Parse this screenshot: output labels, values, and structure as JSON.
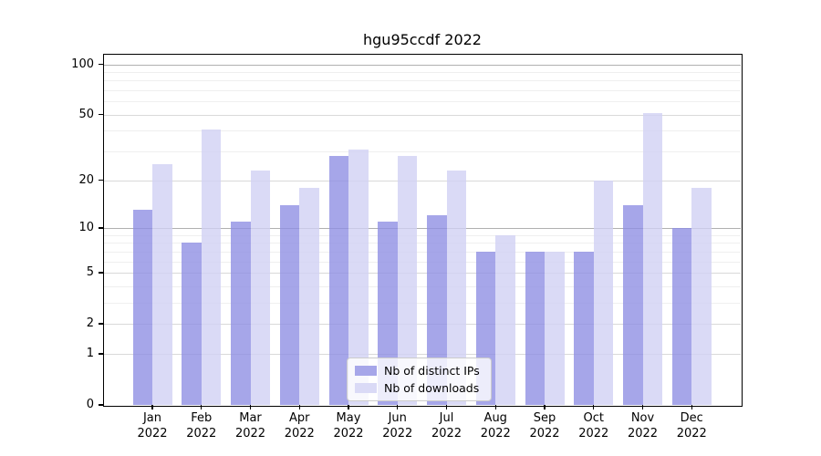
{
  "title": "hgu95ccdf 2022",
  "colors": {
    "distinct_ips": "#a6a6e9",
    "downloads": "#dadaf6",
    "distinct_ips_fill": "rgba(141,141,227,0.78)",
    "downloads_fill": "rgba(209,209,244,0.80)",
    "grid_major": "#b0b0b0",
    "grid_mid": "#d9d9d9",
    "grid_minor": "#efefef",
    "axis_frame": "#000000",
    "legend_border": "#cccccc"
  },
  "chart_data": {
    "type": "bar",
    "title": "hgu95ccdf 2022",
    "categories": [
      "Jan 2022",
      "Feb 2022",
      "Mar 2022",
      "Apr 2022",
      "May 2022",
      "Jun 2022",
      "Jul 2022",
      "Aug 2022",
      "Sep 2022",
      "Oct 2022",
      "Nov 2022",
      "Dec 2022"
    ],
    "series": [
      {
        "name": "Nb of distinct IPs",
        "color_key": "distinct_ips",
        "values": [
          13,
          8,
          11,
          14,
          28,
          11,
          12,
          7,
          7,
          7,
          14,
          10
        ]
      },
      {
        "name": "Nb of downloads",
        "color_key": "downloads",
        "values": [
          25,
          41,
          23,
          18,
          31,
          28,
          23,
          9,
          7,
          20,
          51,
          18
        ]
      }
    ],
    "xlabel": "",
    "ylabel": "",
    "yscale": "log1p",
    "yticks": [
      0,
      1,
      2,
      5,
      10,
      20,
      50,
      100
    ],
    "yticks_minor": [
      3,
      4,
      6,
      7,
      8,
      9,
      30,
      40,
      60,
      70,
      80,
      90
    ],
    "ylim": [
      0,
      114
    ],
    "grid": true,
    "legend_position": "lower center inside"
  }
}
